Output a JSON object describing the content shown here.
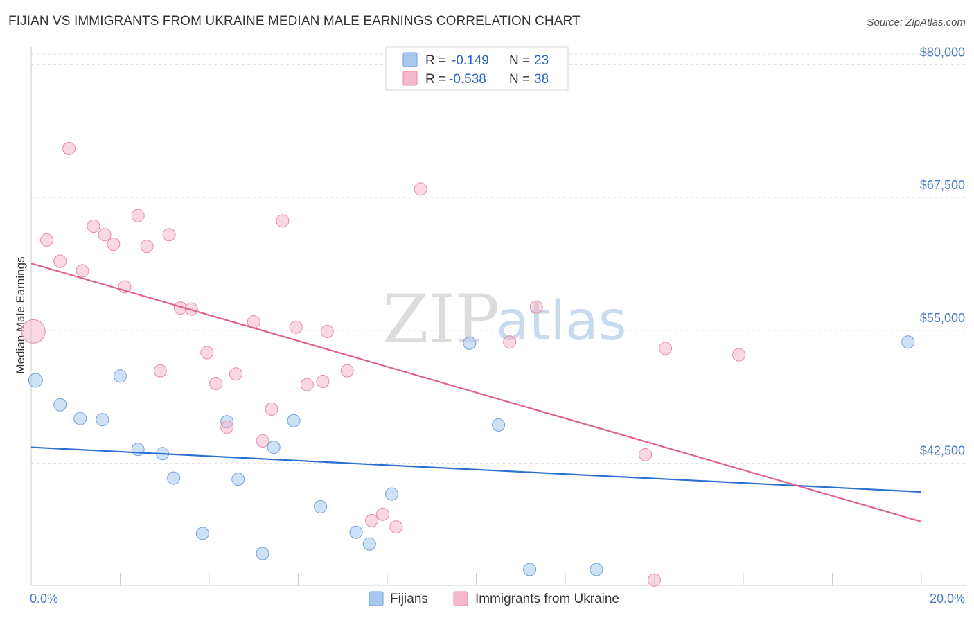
{
  "title": "FIJIAN VS IMMIGRANTS FROM UKRAINE MEDIAN MALE EARNINGS CORRELATION CHART",
  "source": "Source: ZipAtlas.com",
  "watermark": {
    "zip": "ZIP",
    "atlas": "atlas"
  },
  "legend": {
    "rows": [
      {
        "r_label": "R =",
        "r_value": "-0.149",
        "n_label": "N =",
        "n_value": "23",
        "color": "#a8c8f0"
      },
      {
        "r_label": "R =",
        "r_value": "-0.538",
        "n_label": "N =",
        "n_value": "38",
        "color": "#f6b8cb"
      }
    ]
  },
  "chart_data": {
    "type": "scatter",
    "title": "FIJIAN VS IMMIGRANTS FROM UKRAINE MEDIAN MALE EARNINGS CORRELATION CHART",
    "xlabel": "",
    "ylabel": "Median Male Earnings",
    "xlim": [
      0,
      20
    ],
    "ylim": [
      31000,
      81000
    ],
    "x_tick_labels": [
      "0.0%",
      "20.0%"
    ],
    "y_ticks": [
      42500,
      55000,
      67500,
      80000
    ],
    "y_tick_labels": [
      "$42,500",
      "$55,000",
      "$67,500",
      "$80,000"
    ],
    "grid": true,
    "legend_position": "bottom-center",
    "series": [
      {
        "name": "Fijians",
        "color": "#a8c8f0",
        "stroke": "#6f9fd8",
        "trend_color": "#2a6fd1",
        "trend": {
          "x": [
            0,
            20
          ],
          "y": [
            44000,
            39800
          ]
        },
        "points": [
          {
            "x": 0.1,
            "y": 50300,
            "big": true
          },
          {
            "x": 0.65,
            "y": 48000
          },
          {
            "x": 1.1,
            "y": 46700
          },
          {
            "x": 1.6,
            "y": 46600
          },
          {
            "x": 2.0,
            "y": 50700
          },
          {
            "x": 2.4,
            "y": 43800
          },
          {
            "x": 2.95,
            "y": 43400
          },
          {
            "x": 3.2,
            "y": 41100
          },
          {
            "x": 3.85,
            "y": 35900
          },
          {
            "x": 4.4,
            "y": 46400
          },
          {
            "x": 4.65,
            "y": 41000
          },
          {
            "x": 5.2,
            "y": 34000
          },
          {
            "x": 5.45,
            "y": 44000
          },
          {
            "x": 5.9,
            "y": 46500
          },
          {
            "x": 6.5,
            "y": 38400
          },
          {
            "x": 7.3,
            "y": 36000
          },
          {
            "x": 7.6,
            "y": 34900
          },
          {
            "x": 8.1,
            "y": 39600
          },
          {
            "x": 9.85,
            "y": 53800
          },
          {
            "x": 10.5,
            "y": 46100
          },
          {
            "x": 11.2,
            "y": 32500
          },
          {
            "x": 12.7,
            "y": 32500
          },
          {
            "x": 19.7,
            "y": 53900
          }
        ]
      },
      {
        "name": "Immigrants from Ukraine",
        "color": "#f6b8cb",
        "stroke": "#e58aa6",
        "trend_color": "#e06090",
        "trend": {
          "x": [
            0,
            20
          ],
          "y": [
            61300,
            37000
          ]
        },
        "points": [
          {
            "x": 0.05,
            "y": 54900,
            "big": true
          },
          {
            "x": 0.35,
            "y": 63500
          },
          {
            "x": 0.65,
            "y": 61500
          },
          {
            "x": 0.85,
            "y": 72100
          },
          {
            "x": 1.15,
            "y": 60600
          },
          {
            "x": 1.4,
            "y": 64800
          },
          {
            "x": 1.65,
            "y": 64000
          },
          {
            "x": 1.85,
            "y": 63100
          },
          {
            "x": 2.1,
            "y": 59100
          },
          {
            "x": 2.4,
            "y": 65800
          },
          {
            "x": 2.6,
            "y": 62900
          },
          {
            "x": 2.9,
            "y": 51200
          },
          {
            "x": 3.1,
            "y": 64000
          },
          {
            "x": 3.35,
            "y": 57100
          },
          {
            "x": 3.6,
            "y": 57000
          },
          {
            "x": 3.95,
            "y": 52900
          },
          {
            "x": 4.15,
            "y": 50000
          },
          {
            "x": 4.4,
            "y": 45900
          },
          {
            "x": 4.6,
            "y": 50900
          },
          {
            "x": 5.0,
            "y": 55800
          },
          {
            "x": 5.2,
            "y": 44600
          },
          {
            "x": 5.4,
            "y": 47600
          },
          {
            "x": 5.65,
            "y": 65300
          },
          {
            "x": 5.95,
            "y": 55300
          },
          {
            "x": 6.2,
            "y": 49900
          },
          {
            "x": 6.55,
            "y": 50200
          },
          {
            "x": 6.65,
            "y": 54900
          },
          {
            "x": 7.1,
            "y": 51200
          },
          {
            "x": 7.65,
            "y": 37100
          },
          {
            "x": 7.9,
            "y": 37700
          },
          {
            "x": 8.2,
            "y": 36500
          },
          {
            "x": 8.75,
            "y": 68300
          },
          {
            "x": 10.75,
            "y": 53900
          },
          {
            "x": 11.35,
            "y": 57200
          },
          {
            "x": 13.8,
            "y": 43300
          },
          {
            "x": 14.0,
            "y": 31500
          },
          {
            "x": 14.25,
            "y": 53300
          },
          {
            "x": 15.9,
            "y": 52700
          }
        ]
      }
    ]
  }
}
